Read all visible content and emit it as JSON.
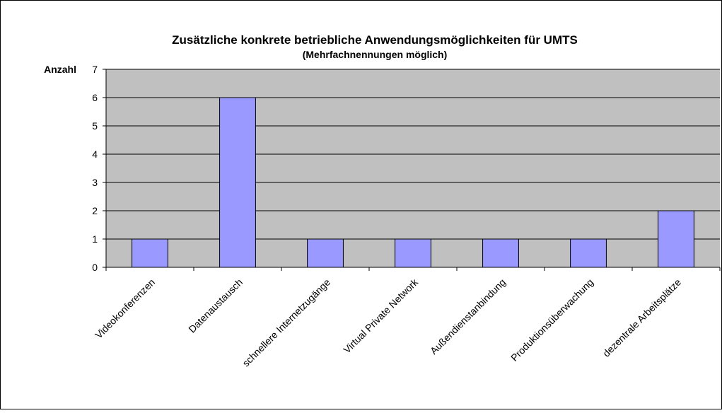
{
  "chart_data": {
    "type": "bar",
    "title": "Zusätzliche konkrete betriebliche Anwendungsmöglichkeiten für UMTS",
    "subtitle": "(Mehrfachnennungen möglich)",
    "y_label": "Anzahl",
    "categories": [
      "Videokonferenzen",
      "Datenaustausch",
      "schnellere Internetzugänge",
      "Virtual Private Network",
      "Außendienstanbindung",
      "Produktionsüberwachung",
      "dezentrale Arbeitsplätze"
    ],
    "values": [
      1,
      6,
      1,
      1,
      1,
      1,
      2
    ],
    "color": "#9999ff",
    "ylim": [
      0,
      7
    ],
    "yticks": [
      0,
      1,
      2,
      3,
      4,
      5,
      6,
      7
    ],
    "grid": true
  }
}
